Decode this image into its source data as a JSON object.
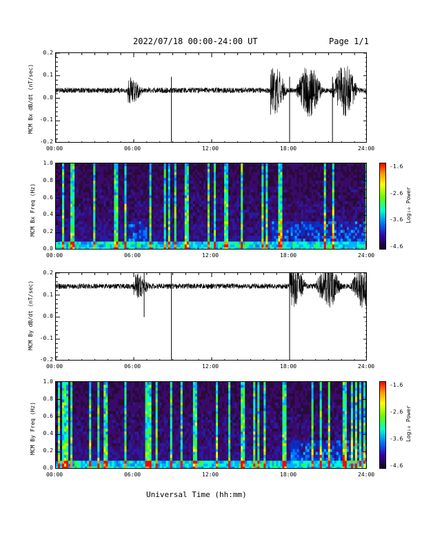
{
  "header": {
    "date_range": "2022/07/18  00:00-24:00 UT",
    "page": "Page 1/1"
  },
  "xlabel": "Universal Time (hh:mm)",
  "x_ticks": [
    "00:00",
    "06:00",
    "12:00",
    "18:00",
    "24:00"
  ],
  "chart_data": [
    {
      "type": "line",
      "ylabel": "MCM Bx dB/dt (nT/sec)",
      "y_ticks": [
        "0.2",
        "0.1",
        "0.0",
        "-0.1",
        "-0.2"
      ],
      "ylim": [
        -0.2,
        0.2
      ],
      "xlim_hours": [
        0,
        24
      ],
      "baseline": 0.035,
      "activity_hours": [
        [
          5.5,
          7.0,
          0.06
        ],
        [
          16.5,
          24,
          0.12
        ]
      ],
      "spikes": [
        {
          "x_hour": 8.9,
          "y": -0.2
        },
        {
          "x_hour": 18.0,
          "y": -0.2
        },
        {
          "x_hour": 21.3,
          "y": -0.2
        }
      ]
    },
    {
      "type": "heatmap",
      "ylabel": "MCM Bx Freq (Hz)",
      "y_ticks": [
        "1.0",
        "0.8",
        "0.6",
        "0.4",
        "0.2",
        "0.0"
      ],
      "colorbar_label": "Log₁₀ Power",
      "colorbar_ticks": [
        "-1.6",
        "-2.6",
        "-3.6",
        "-4.6"
      ],
      "clim": [
        -4.6,
        -1.6
      ],
      "ylim": [
        0,
        1.0
      ],
      "enhanced_hours": [
        [
          5.5,
          7.0
        ],
        [
          16.5,
          24
        ]
      ]
    },
    {
      "type": "line",
      "ylabel": "MCM By dB/dt (nT/sec)",
      "y_ticks": [
        "0.2",
        "0.1",
        "0.0",
        "-0.1",
        "-0.2"
      ],
      "ylim": [
        -0.2,
        0.2
      ],
      "xlim_hours": [
        0,
        24
      ],
      "baseline": 0.14,
      "activity_hours": [
        [
          6.0,
          7.5,
          0.06
        ],
        [
          18.0,
          24,
          0.1
        ]
      ],
      "spikes": [
        {
          "x_hour": 8.9,
          "y": -0.2
        },
        {
          "x_hour": 18.0,
          "y": -0.2
        },
        {
          "x_hour": 6.8,
          "y": 0.0
        }
      ]
    },
    {
      "type": "heatmap",
      "ylabel": "MCM By Freq (Hz)",
      "y_ticks": [
        "1.0",
        "0.8",
        "0.6",
        "0.4",
        "0.2",
        "0.0"
      ],
      "colorbar_label": "Log₁₀ Power",
      "colorbar_ticks": [
        "-1.6",
        "-2.6",
        "-3.6",
        "-4.6"
      ],
      "clim": [
        -4.6,
        -1.6
      ],
      "ylim": [
        0,
        1.0
      ],
      "enhanced_hours": [
        [
          18.0,
          24
        ]
      ]
    }
  ]
}
